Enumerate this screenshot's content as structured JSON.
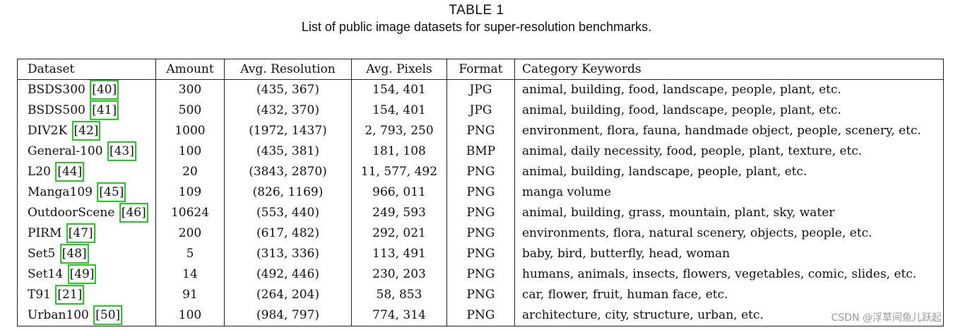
{
  "caption": {
    "title": "TABLE 1",
    "subtitle": "List of public image datasets for super-resolution benchmarks."
  },
  "table": {
    "headers": [
      "Dataset",
      "Amount",
      "Avg. Resolution",
      "Avg. Pixels",
      "Format",
      "Category Keywords"
    ],
    "rows": [
      {
        "name": "BSDS300",
        "ref": "[40]",
        "amount": "300",
        "resolution": "(435, 367)",
        "pixels": "154, 401",
        "format": "JPG",
        "keywords": "animal, building, food, landscape, people, plant, etc."
      },
      {
        "name": "BSDS500",
        "ref": "[41]",
        "amount": "500",
        "resolution": "(432, 370)",
        "pixels": "154, 401",
        "format": "JPG",
        "keywords": "animal, building, food, landscape, people, plant, etc."
      },
      {
        "name": "DIV2K",
        "ref": "[42]",
        "amount": "1000",
        "resolution": "(1972, 1437)",
        "pixels": "2, 793, 250",
        "format": "PNG",
        "keywords": "environment, flora, fauna, handmade object, people, scenery, etc."
      },
      {
        "name": "General-100",
        "ref": "[43]",
        "amount": "100",
        "resolution": "(435, 381)",
        "pixels": "181, 108",
        "format": "BMP",
        "keywords": "animal, daily necessity, food, people, plant, texture, etc."
      },
      {
        "name": "L20",
        "ref": "[44]",
        "amount": "20",
        "resolution": "(3843, 2870)",
        "pixels": "11, 577, 492",
        "format": "PNG",
        "keywords": "animal, building, landscape, people, plant, etc."
      },
      {
        "name": "Manga109",
        "ref": "[45]",
        "amount": "109",
        "resolution": "(826, 1169)",
        "pixels": "966, 011",
        "format": "PNG",
        "keywords": "manga volume"
      },
      {
        "name": "OutdoorScene",
        "ref": "[46]",
        "amount": "10624",
        "resolution": "(553, 440)",
        "pixels": "249, 593",
        "format": "PNG",
        "keywords": "animal, building, grass, mountain, plant, sky, water"
      },
      {
        "name": "PIRM",
        "ref": "[47]",
        "amount": "200",
        "resolution": "(617, 482)",
        "pixels": "292, 021",
        "format": "PNG",
        "keywords": "environments, flora, natural scenery, objects, people, etc."
      },
      {
        "name": "Set5",
        "ref": "[48]",
        "amount": "5",
        "resolution": "(313, 336)",
        "pixels": "113, 491",
        "format": "PNG",
        "keywords": "baby, bird, butterfly, head, woman"
      },
      {
        "name": "Set14",
        "ref": "[49]",
        "amount": "14",
        "resolution": "(492, 446)",
        "pixels": "230, 203",
        "format": "PNG",
        "keywords": "humans, animals, insects, flowers, vegetables, comic, slides, etc."
      },
      {
        "name": "T91",
        "ref": "[21]",
        "amount": "91",
        "resolution": "(264, 204)",
        "pixels": "58, 853",
        "format": "PNG",
        "keywords": "car, flower, fruit, human face, etc."
      },
      {
        "name": "Urban100",
        "ref": "[50]",
        "amount": "100",
        "resolution": "(984, 797)",
        "pixels": "774, 314",
        "format": "PNG",
        "keywords": "architecture, city, structure, urban, etc."
      }
    ]
  },
  "watermark": "CSDN @浮草间鱼儿跃起",
  "colors": {
    "citation_highlight": "#22cc22",
    "watermark": "#9a9a9a"
  }
}
